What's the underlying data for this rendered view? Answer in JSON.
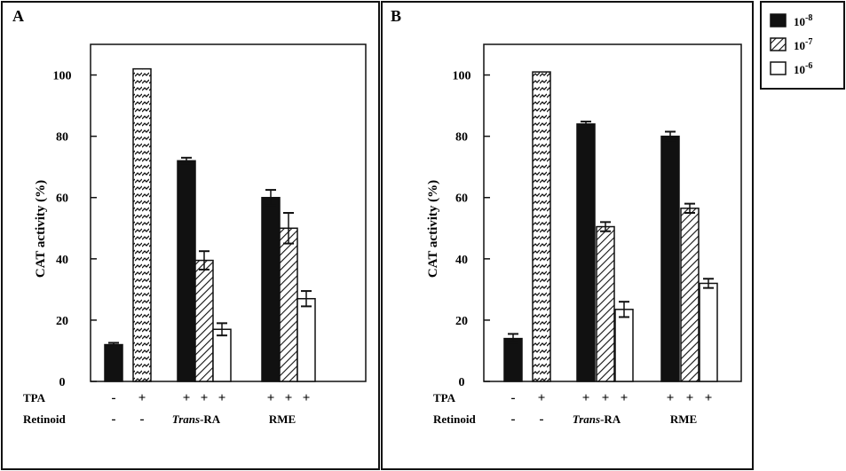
{
  "chart_data": [
    {
      "type": "bar",
      "panel": "A",
      "ylabel": "CAT activity (%)",
      "ylim": [
        0,
        110
      ],
      "yticks": [
        0,
        20,
        40,
        60,
        80,
        100
      ],
      "bars": [
        {
          "series": "control",
          "value": 12,
          "error": 0.6
        },
        {
          "series": "tpa",
          "value": 102,
          "error": 0
        },
        {
          "series": "10-8",
          "value": 72,
          "error": 1.0
        },
        {
          "series": "10-7",
          "value": 39.5,
          "error": 3.0
        },
        {
          "series": "10-6",
          "value": 17,
          "error": 2.0
        },
        {
          "series": "10-8",
          "value": 60,
          "error": 2.5
        },
        {
          "series": "10-7",
          "value": 50,
          "error": 5.0
        },
        {
          "series": "10-6",
          "value": 27,
          "error": 2.5
        }
      ],
      "rows": [
        {
          "label": "TPA",
          "signs": [
            "-",
            "+",
            "+",
            "+",
            "+",
            "+",
            "+",
            "+"
          ]
        },
        {
          "label": "Retinoid",
          "signs": [
            "-",
            "-",
            "",
            "",
            "",
            "",
            "",
            ""
          ]
        }
      ],
      "groups": [
        {
          "italic": "Trans",
          "rest": "-RA"
        },
        {
          "italic": "",
          "rest": "RME"
        }
      ]
    },
    {
      "type": "bar",
      "panel": "B",
      "ylabel": "CAT activity (%)",
      "ylim": [
        0,
        110
      ],
      "yticks": [
        0,
        20,
        40,
        60,
        80,
        100
      ],
      "bars": [
        {
          "series": "control",
          "value": 14,
          "error": 1.5
        },
        {
          "series": "tpa",
          "value": 101,
          "error": 0
        },
        {
          "series": "10-8",
          "value": 84,
          "error": 0.8
        },
        {
          "series": "10-7",
          "value": 50.5,
          "error": 1.5
        },
        {
          "series": "10-6",
          "value": 23.5,
          "error": 2.5
        },
        {
          "series": "10-8",
          "value": 80,
          "error": 1.5
        },
        {
          "series": "10-7",
          "value": 56.5,
          "error": 1.5
        },
        {
          "series": "10-6",
          "value": 32,
          "error": 1.5
        }
      ],
      "rows": [
        {
          "label": "TPA",
          "signs": [
            "-",
            "+",
            "+",
            "+",
            "+",
            "+",
            "+",
            "+"
          ]
        },
        {
          "label": "Retinoid",
          "signs": [
            "-",
            "-",
            "",
            "",
            "",
            "",
            "",
            ""
          ]
        }
      ],
      "groups": [
        {
          "italic": "Trans",
          "rest": "-RA"
        },
        {
          "italic": "",
          "rest": "RME"
        }
      ]
    }
  ],
  "legend": {
    "placement": "top-right",
    "entries": [
      {
        "key": "10-8",
        "base": "10",
        "exp": "-8",
        "fill": "black"
      },
      {
        "key": "10-7",
        "base": "10",
        "exp": "-7",
        "fill": "hatch"
      },
      {
        "key": "10-6",
        "base": "10",
        "exp": "-6",
        "fill": "white"
      }
    ]
  },
  "colors": {
    "ink": "#111111",
    "background": "#ffffff"
  }
}
